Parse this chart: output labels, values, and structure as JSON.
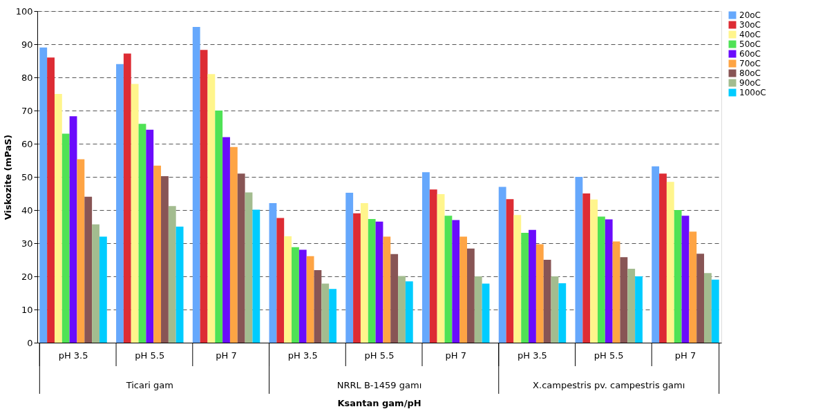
{
  "chart_data": {
    "type": "bar",
    "xlabel": "Ksantan gam/pH",
    "ylabel": "Viskozite (mPaS)",
    "categories": [
      "pH 3.5",
      "pH 5.5",
      "pH 7",
      "pH 3.5",
      "pH 5.5",
      "pH 7",
      "pH 3.5",
      "pH 5.5",
      "pH 7"
    ],
    "annotations": [
      "Ticari gam",
      "NRRL B-1459 gamı",
      "X.campestris pv. campestris gamı"
    ],
    "series": [
      {
        "name": "20oC",
        "color": "#66a8fc",
        "values": [
          89,
          84,
          95.2,
          42.1,
          45.2,
          51.4,
          47,
          50,
          53.2
        ]
      },
      {
        "name": "30oC",
        "color": "#dd2c34",
        "values": [
          86,
          87.2,
          88.3,
          37.6,
          39,
          46.2,
          43.3,
          45,
          51
        ]
      },
      {
        "name": "40oC",
        "color": "#fff58c",
        "values": [
          75,
          78,
          81,
          32.1,
          42.1,
          44.8,
          38.5,
          43.2,
          48.5
        ]
      },
      {
        "name": "50oC",
        "color": "#4fe255",
        "values": [
          63,
          66,
          70,
          28.8,
          37.3,
          38.3,
          33.1,
          38,
          40
        ]
      },
      {
        "name": "60oC",
        "color": "#6a0cfc",
        "values": [
          68.3,
          64.2,
          62,
          28,
          36.5,
          37,
          34,
          37.2,
          38.3
        ]
      },
      {
        "name": "70oC",
        "color": "#fea444",
        "values": [
          55.3,
          53.4,
          59,
          26.1,
          32,
          32,
          29.7,
          30.5,
          33.5
        ]
      },
      {
        "name": "80oC",
        "color": "#885555",
        "values": [
          44,
          50.2,
          51,
          21.9,
          26.7,
          28.4,
          25,
          25.8,
          26.8
        ]
      },
      {
        "name": "90oC",
        "color": "#a3bc8f",
        "values": [
          35.7,
          41.2,
          45.3,
          17.8,
          20.1,
          20,
          20,
          22.3,
          21
        ]
      },
      {
        "name": "100oC",
        "color": "#00ccff",
        "values": [
          32,
          35,
          40.1,
          16.2,
          18.5,
          17.8,
          17.9,
          20,
          19
        ]
      }
    ],
    "ylim": [
      0,
      100
    ],
    "yticks": [
      0,
      10,
      20,
      30,
      40,
      50,
      60,
      70,
      80,
      90,
      100
    ],
    "grid": "y",
    "legend": "right"
  }
}
